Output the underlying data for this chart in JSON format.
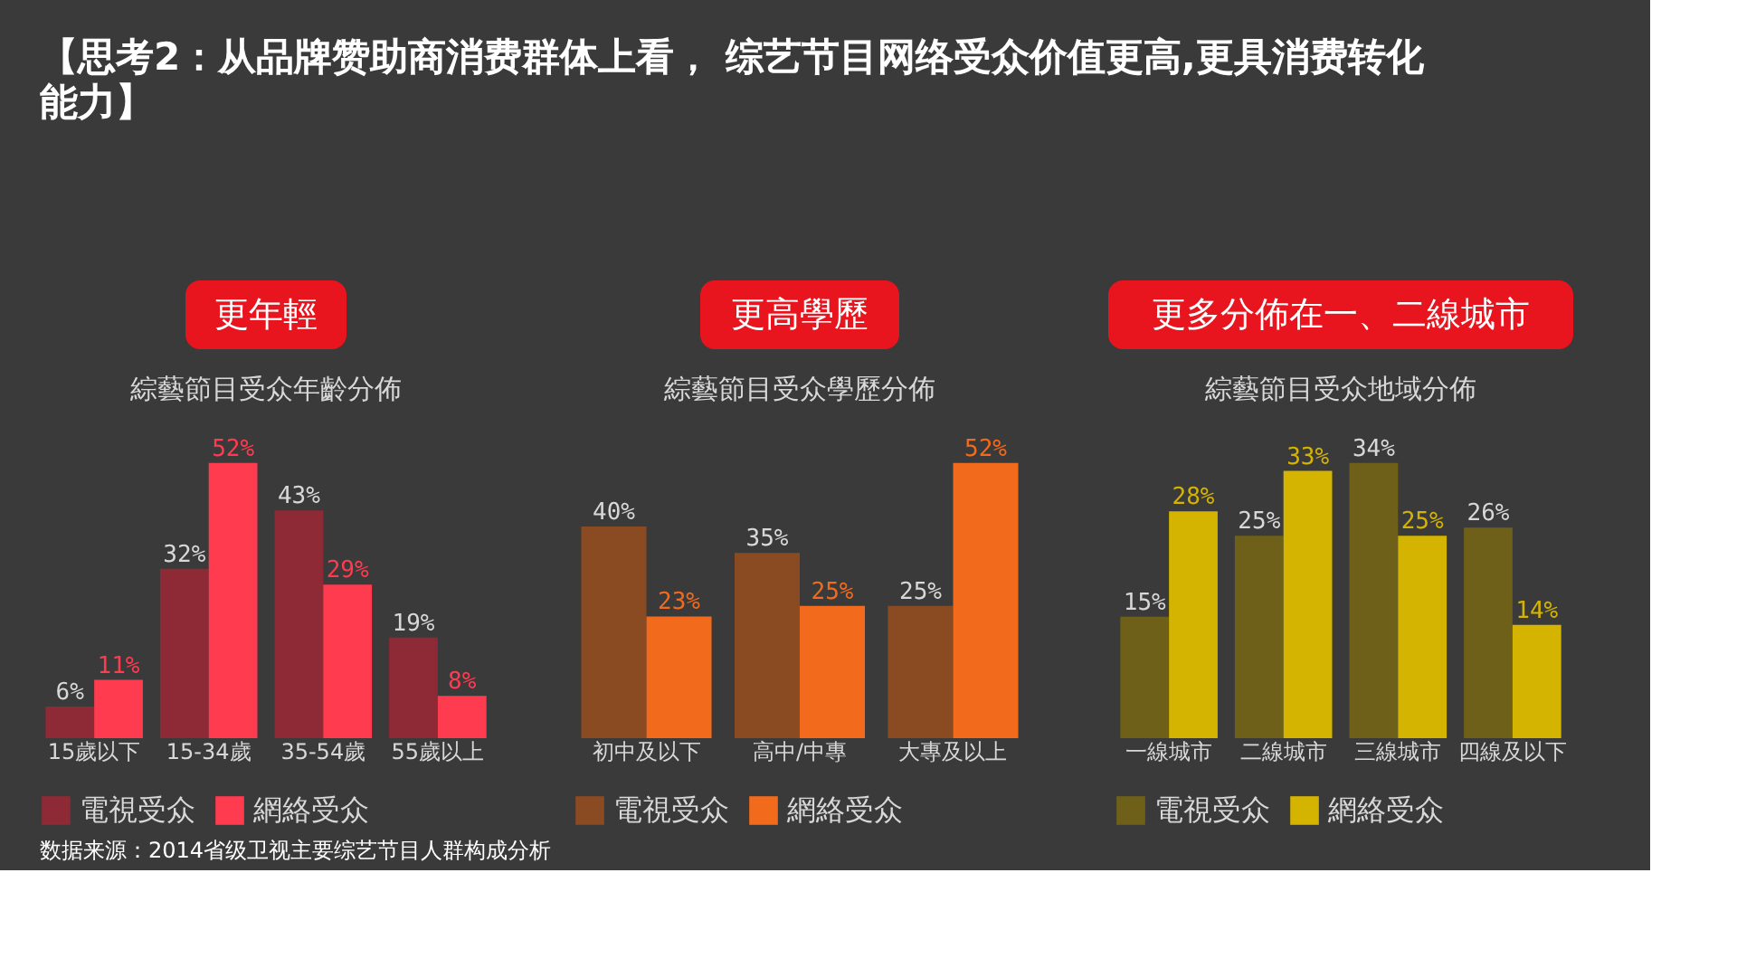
{
  "chart_data": [
    {
      "type": "bar",
      "title": "綜藝節目受众年齡分佈",
      "subtitle": "更年輕",
      "categories": [
        "15歲以下",
        "15-34歲",
        "35-54歲",
        "55歲以上"
      ],
      "series": [
        {
          "name": "電視受众",
          "color": "#8e2a36",
          "values": [
            6,
            32,
            43,
            19
          ],
          "value_labels": [
            "6%",
            "32%",
            "43%",
            "19%"
          ]
        },
        {
          "name": "網絡受众",
          "color": "#ff3b50",
          "values": [
            11,
            52,
            29,
            8
          ],
          "value_labels": [
            "11%",
            "52%",
            "29%",
            "8%"
          ]
        }
      ],
      "legend": "bottom",
      "annotations": [
        "【思考2：从品牌赞助商消费群体上看，  综艺节目网络受众价值更高,更具消费转化能力】",
        "数据来源：2014省级卫视主要综艺节目人群构成分析"
      ]
    },
    {
      "type": "bar",
      "title": "綜藝節目受众學歷分佈",
      "subtitle": "更高學歷",
      "categories": [
        "初中及以下",
        "高中/中專",
        "大專及以上"
      ],
      "series": [
        {
          "name": "電視受众",
          "color": "#8a4a22",
          "values": [
            40,
            35,
            25
          ],
          "value_labels": [
            "40%",
            "35%",
            "25%"
          ]
        },
        {
          "name": "網絡受众",
          "color": "#f26a1b",
          "values": [
            23,
            25,
            52
          ],
          "value_labels": [
            "23%",
            "25%",
            "52%"
          ]
        }
      ],
      "legend": "bottom"
    },
    {
      "type": "bar",
      "title": "綜藝節目受众地域分佈",
      "subtitle": "更多分佈在一、二線城市",
      "categories": [
        "一線城市",
        "二線城市",
        "三線城市",
        "四線及以下"
      ],
      "series": [
        {
          "name": "電視受众",
          "color": "#6e6018",
          "values": [
            15,
            25,
            34,
            26
          ],
          "value_labels": [
            "15%",
            "25%",
            "34%",
            "26%"
          ]
        },
        {
          "name": "網絡受众",
          "color": "#d4b400",
          "values": [
            28,
            33,
            25,
            14
          ],
          "value_labels": [
            "28%",
            "33%",
            "25%",
            "14%"
          ]
        }
      ],
      "legend": "bottom"
    }
  ]
}
